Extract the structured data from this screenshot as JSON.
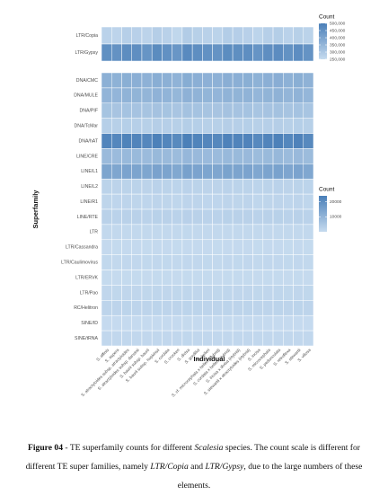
{
  "chart_data": [
    {
      "type": "heatmap",
      "zlim": [
        250000,
        500000
      ],
      "zticks": [
        {
          "value": 250000,
          "label": "250,000"
        },
        {
          "value": 300000,
          "label": "300,000"
        },
        {
          "value": 350000,
          "label": "350,000"
        },
        {
          "value": 400000,
          "label": "400,000"
        },
        {
          "value": 450000,
          "label": "450,000"
        },
        {
          "value": 500000,
          "label": "500,000"
        }
      ],
      "legend_title": "Count",
      "colors": [
        "#c6dbef",
        "#4a7fb8"
      ],
      "series": [
        {
          "name": "LTR/Copia",
          "values": [
            275000,
            268000,
            282000,
            279000,
            271000,
            285000,
            276000,
            262000,
            290000,
            281000,
            277000,
            273000,
            288000,
            284000,
            279000,
            270000,
            283000,
            286000,
            274000,
            280000,
            272000
          ]
        },
        {
          "name": "LTR/Gypsy",
          "values": [
            455000,
            448000,
            462000,
            458000,
            441000,
            466000,
            452000,
            437000,
            470000,
            459000,
            451000,
            446000,
            463000,
            457000,
            460000,
            443000,
            458000,
            464000,
            449000,
            461000,
            445000
          ]
        }
      ]
    },
    {
      "type": "heatmap",
      "zlim": [
        0,
        24000
      ],
      "zticks": [
        10000,
        20000
      ],
      "legend_title": "Count",
      "colors": [
        "#c6dbef",
        "#4a7fb8"
      ],
      "xlabel": "Individual",
      "ylabel": "Superfamily",
      "categories": [
        "S. affinis",
        "S. aspera",
        "S. atractyloides subsp. atractyloides",
        "S. atractyloides subsp. darwinii",
        "S. baurii subsp. baurii",
        "S. baurii subsp. hopkinsii",
        "S. cordata",
        "S. crockeri",
        "S. divisa",
        "S. gordilloi",
        "S. helleri",
        "S. cf. microcephala x helleri (Hybrid)",
        "S. cordata x helleri (Hybrid)",
        "S. incisa x divisa (Hybrid)",
        "S. stewartii x atractyloides (Hybrid)",
        "S. incisa",
        "S. microcephala",
        "S. pedunculata",
        "S. retroflexa",
        "S. stewartii",
        "S. villosa"
      ],
      "series": [
        {
          "name": "DNA/CMC",
          "values": [
            11200,
            10800,
            11600,
            11400,
            10900,
            11800,
            11300,
            10500,
            12100,
            11500,
            11100,
            10900,
            11700,
            11400,
            11600,
            10800,
            11500,
            11900,
            11000,
            11600,
            10700
          ]
        },
        {
          "name": "DNA/MULE",
          "values": [
            10100,
            9800,
            10400,
            10300,
            9900,
            10600,
            10200,
            9500,
            10900,
            10400,
            10000,
            9800,
            10500,
            10300,
            10400,
            9700,
            10300,
            10700,
            9900,
            10500,
            9600
          ]
        },
        {
          "name": "DNA/PIF",
          "values": [
            6100,
            5900,
            6300,
            6200,
            6000,
            6400,
            6100,
            5700,
            6600,
            6300,
            6000,
            5900,
            6400,
            6200,
            6300,
            5800,
            6200,
            6500,
            6000,
            6300,
            5800
          ]
        },
        {
          "name": "DNA/TcMar",
          "values": [
            3100,
            3000,
            3200,
            3100,
            3000,
            3300,
            3100,
            2900,
            3400,
            3200,
            3000,
            3000,
            3300,
            3100,
            3200,
            2900,
            3100,
            3300,
            3000,
            3200,
            2900
          ]
        },
        {
          "name": "DNA/hAT",
          "values": [
            22400,
            21800,
            23000,
            22600,
            21900,
            23400,
            22300,
            21200,
            23800,
            22800,
            22100,
            21700,
            23200,
            22700,
            22900,
            21500,
            22600,
            23500,
            22000,
            23100,
            21400
          ]
        },
        {
          "name": "LINE/CRE",
          "values": [
            8600,
            8300,
            8900,
            8700,
            8400,
            9000,
            8600,
            8100,
            9300,
            8800,
            8500,
            8300,
            8900,
            8700,
            8800,
            8200,
            8700,
            9100,
            8400,
            8800,
            8100
          ]
        },
        {
          "name": "LINE/L1",
          "values": [
            14200,
            13800,
            14600,
            14400,
            13900,
            14800,
            14300,
            13400,
            15100,
            14500,
            14100,
            13800,
            14700,
            14400,
            14600,
            13600,
            14400,
            14900,
            14000,
            14600,
            13500
          ]
        },
        {
          "name": "LINE/L2",
          "values": [
            2100,
            2000,
            2200,
            2100,
            2000,
            2300,
            2100,
            1900,
            2400,
            2200,
            2000,
            2000,
            2300,
            2100,
            2200,
            1900,
            2100,
            2300,
            2000,
            2200,
            1900
          ]
        },
        {
          "name": "LINE/R1",
          "values": [
            1600,
            1500,
            1700,
            1600,
            1500,
            1700,
            1600,
            1400,
            1800,
            1700,
            1500,
            1500,
            1700,
            1600,
            1700,
            1400,
            1600,
            1700,
            1500,
            1700,
            1400
          ]
        },
        {
          "name": "LINE/RTE",
          "values": [
            2500,
            2400,
            2600,
            2500,
            2400,
            2700,
            2500,
            2300,
            2800,
            2600,
            2400,
            2400,
            2700,
            2500,
            2600,
            2300,
            2500,
            2700,
            2400,
            2600,
            2300
          ]
        },
        {
          "name": "LTR",
          "values": [
            800,
            760,
            840,
            820,
            780,
            860,
            800,
            740,
            880,
            830,
            790,
            770,
            850,
            810,
            830,
            750,
            820,
            860,
            780,
            840,
            750
          ]
        },
        {
          "name": "LTR/Cassandra",
          "values": [
            400,
            380,
            420,
            410,
            390,
            430,
            400,
            370,
            440,
            420,
            400,
            390,
            430,
            410,
            420,
            380,
            410,
            430,
            390,
            420,
            380
          ]
        },
        {
          "name": "LTR/Caulimovirus",
          "values": [
            900,
            860,
            940,
            920,
            880,
            960,
            900,
            840,
            980,
            930,
            890,
            870,
            950,
            910,
            930,
            850,
            920,
            960,
            880,
            940,
            850
          ]
        },
        {
          "name": "LTR/ERVK",
          "values": [
            300,
            290,
            320,
            310,
            290,
            330,
            300,
            280,
            340,
            320,
            300,
            290,
            330,
            310,
            320,
            280,
            310,
            330,
            290,
            320,
            280
          ]
        },
        {
          "name": "LTR/Pao",
          "values": [
            1200,
            1150,
            1250,
            1220,
            1170,
            1280,
            1200,
            1120,
            1300,
            1240,
            1190,
            1160,
            1260,
            1210,
            1240,
            1130,
            1220,
            1280,
            1170,
            1250,
            1130
          ]
        },
        {
          "name": "RC/Helitron",
          "values": [
            1800,
            1740,
            1860,
            1830,
            1770,
            1900,
            1800,
            1700,
            1950,
            1850,
            1790,
            1750,
            1880,
            1820,
            1850,
            1720,
            1830,
            1900,
            1770,
            1860,
            1710
          ]
        },
        {
          "name": "SINE/ID",
          "values": [
            200,
            190,
            210,
            205,
            195,
            215,
            200,
            185,
            220,
            210,
            200,
            195,
            215,
            205,
            210,
            190,
            205,
            215,
            195,
            210,
            190
          ]
        },
        {
          "name": "SINE/tRNA",
          "values": [
            1000,
            960,
            1040,
            1020,
            980,
            1060,
            1000,
            940,
            1080,
            1030,
            990,
            970,
            1050,
            1010,
            1030,
            950,
            1020,
            1060,
            980,
            1040,
            950
          ]
        }
      ]
    }
  ],
  "caption": [
    {
      "text": "Figure 04",
      "style": "bold"
    },
    {
      "text": " - TE superfamily counts for different ",
      "style": "normal"
    },
    {
      "text": "Scalesia",
      "style": "italic"
    },
    {
      "text": " species. The count scale is different for different TE super families, namely ",
      "style": "normal"
    },
    {
      "text": "LTR/Copia",
      "style": "italic"
    },
    {
      "text": " and ",
      "style": "normal"
    },
    {
      "text": "LTR/Gypsy",
      "style": "italic"
    },
    {
      "text": ", due to the large numbers of these elements.",
      "style": "normal"
    }
  ]
}
